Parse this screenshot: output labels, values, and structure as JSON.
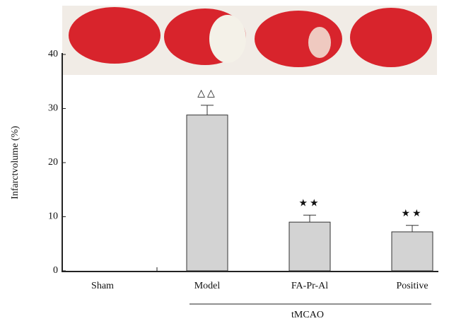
{
  "chart_data": {
    "type": "bar",
    "ylabel": "Infarctvolume (%)",
    "categories": [
      "Sham",
      "Model",
      "FA-Pr-Al",
      "Positive"
    ],
    "values": [
      0,
      28.8,
      9.0,
      7.2
    ],
    "errors": [
      null,
      1.8,
      1.3,
      1.2
    ],
    "markers": [
      null,
      "△△",
      "★★",
      "★★"
    ],
    "group_label": "tMCAO",
    "color": "#d3d3d3",
    "ylim": [
      0,
      40
    ],
    "yticks": [
      0,
      10,
      20,
      30,
      40
    ]
  }
}
